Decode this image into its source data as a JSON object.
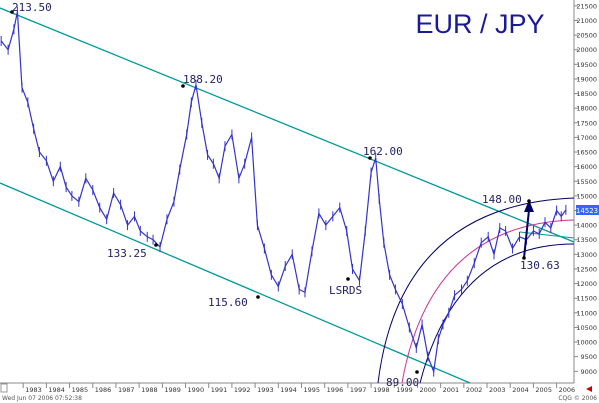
{
  "chart_data": {
    "type": "line",
    "title": "EUR / JPY",
    "ylim": [
      8600,
      21700
    ],
    "x_range": [
      1982.0,
      2006.75
    ],
    "y_ticks": [
      21500,
      21000,
      20500,
      20000,
      19500,
      19000,
      18500,
      18000,
      17500,
      17000,
      16500,
      16000,
      15500,
      15000,
      14500,
      14000,
      13500,
      13000,
      12500,
      12000,
      11500,
      11000,
      10500,
      10000,
      9500,
      9000
    ],
    "x_tick_labels": [
      "1983",
      "1984",
      "1985",
      "1986",
      "1987",
      "1988",
      "1989",
      "1990",
      "1991",
      "1992",
      "1993",
      "1994",
      "1995",
      "1996",
      "1997",
      "1998",
      "1999",
      "2000",
      "2001",
      "2002",
      "2003",
      "2004",
      "2005",
      "2006"
    ],
    "current_value": "14523",
    "grid": false,
    "series": [
      {
        "x": [
          1982.05,
          1982.35,
          1982.6,
          1982.75,
          1982.95,
          1983.2,
          1983.45,
          1983.7,
          1984.0,
          1984.3,
          1984.6,
          1984.85,
          1985.1,
          1985.4,
          1985.7,
          1986.0,
          1986.3,
          1986.6,
          1986.9,
          1987.2,
          1987.5,
          1987.8,
          1988.05,
          1988.35,
          1988.6,
          1988.9,
          1989.2,
          1989.5,
          1989.75,
          1990.05,
          1990.25,
          1990.45,
          1990.7,
          1990.95,
          1991.2,
          1991.45,
          1991.7,
          1992.0,
          1992.3,
          1992.55,
          1992.85,
          1993.1,
          1993.4,
          1993.7,
          1994.0,
          1994.3,
          1994.6,
          1994.9,
          1995.15,
          1995.45,
          1995.75,
          1996.05,
          1996.35,
          1996.65,
          1996.95,
          1997.2,
          1997.5,
          1997.75,
          1998.0,
          1998.2,
          1998.35,
          1998.55,
          1998.8,
          1999.05,
          1999.35,
          1999.65,
          1999.95,
          2000.2,
          2000.45,
          2000.7,
          2000.9,
          2001.1,
          2001.35,
          2001.6,
          2001.9,
          2002.15,
          2002.45,
          2002.75,
          2003.05,
          2003.3,
          2003.55,
          2003.8,
          2004.1,
          2004.4,
          2004.7,
          2005.0,
          2005.25,
          2005.5,
          2005.75,
          2006.0,
          2006.2,
          2006.4
        ],
        "y": [
          20300,
          20000,
          20700,
          21300,
          18700,
          18200,
          17300,
          16500,
          16200,
          15500,
          16000,
          15300,
          15000,
          14800,
          15600,
          15200,
          14600,
          14200,
          15100,
          14700,
          14000,
          14300,
          13800,
          13600,
          13500,
          13250,
          14200,
          14800,
          15900,
          17100,
          18200,
          18800,
          17500,
          16400,
          16100,
          15600,
          16700,
          17100,
          15600,
          16100,
          17000,
          14000,
          13200,
          12300,
          11900,
          12600,
          13000,
          11800,
          11700,
          13100,
          14400,
          14000,
          14300,
          14600,
          13800,
          12500,
          12100,
          13800,
          15800,
          16300,
          14900,
          13400,
          12300,
          11800,
          11300,
          10500,
          9800,
          10600,
          9500,
          8990,
          10100,
          10600,
          11000,
          11600,
          11800,
          12100,
          12700,
          13400,
          13600,
          13000,
          13900,
          13800,
          13200,
          13600,
          13500,
          13800,
          13700,
          14100,
          13900,
          14500,
          14300,
          14523
        ]
      }
    ],
    "annotations": [
      {
        "text": "213.50"
      },
      {
        "text": "188.20"
      },
      {
        "text": "162.00"
      },
      {
        "text": "148.00"
      },
      {
        "text": "133.25"
      },
      {
        "text": "115.60"
      },
      {
        "text": "LSRDS"
      },
      {
        "text": "130.63"
      },
      {
        "text": "89.00"
      }
    ],
    "footer_left": "Wed Jun 07 2006 07:52:38",
    "footer_right": "CQG © 2006",
    "colors": {
      "price": "#3333cc",
      "channel": "#009999",
      "arc": "#000066",
      "arc_mid": "#cc3399",
      "title": "#1a1a99",
      "annotation": "#222266",
      "current_box": "#3366ff",
      "current_text": "#ffffff",
      "axis_text": "#333333",
      "arrow_marker": "#cc0000"
    }
  }
}
